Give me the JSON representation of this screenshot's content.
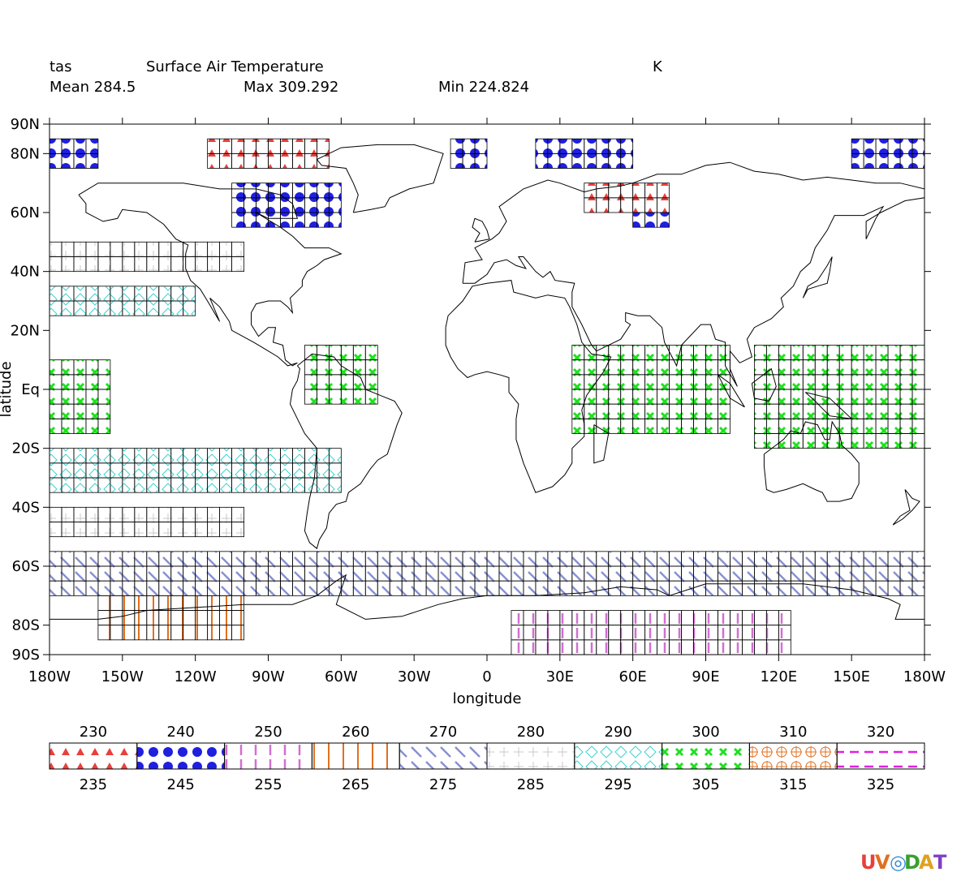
{
  "header": {
    "var_name": "tas",
    "long_name": "Surface Air Temperature",
    "units": "K",
    "mean": "Mean 284.5",
    "max": "Max 309.292",
    "min": "Min 224.824"
  },
  "axes": {
    "xlabel": "longitude",
    "ylabel": "latitude",
    "x_ticks": [
      "180W",
      "150W",
      "120W",
      "90W",
      "60W",
      "30W",
      "0",
      "30E",
      "60E",
      "90E",
      "120E",
      "150E",
      "180W"
    ],
    "x_tick_values": [
      -180,
      -150,
      -120,
      -90,
      -60,
      -30,
      0,
      30,
      60,
      90,
      120,
      150,
      180
    ],
    "y_ticks": [
      "90N",
      "80N",
      "60N",
      "40N",
      "20N",
      "Eq",
      "20S",
      "40S",
      "60S",
      "80S",
      "90S"
    ],
    "y_tick_values": [
      90,
      80,
      60,
      40,
      20,
      0,
      -20,
      -40,
      -60,
      -80,
      -90
    ],
    "xlim": [
      -180,
      180
    ],
    "ylim": [
      -90,
      90
    ]
  },
  "legend": {
    "top_labels": [
      "230",
      "240",
      "250",
      "260",
      "270",
      "280",
      "290",
      "300",
      "310",
      "320"
    ],
    "bottom_labels": [
      "235",
      "245",
      "255",
      "265",
      "275",
      "285",
      "295",
      "305",
      "315",
      "325"
    ],
    "bins": [
      {
        "pattern": "triangles",
        "color": "#e8403c"
      },
      {
        "pattern": "dots",
        "color": "#1f1fe0"
      },
      {
        "pattern": "vlines-dashed",
        "color": "#d070d0"
      },
      {
        "pattern": "vlines",
        "color": "#e07020"
      },
      {
        "pattern": "diagonal",
        "color": "#8890d0"
      },
      {
        "pattern": "plus",
        "color": "#c8c8c8"
      },
      {
        "pattern": "diamonds",
        "color": "#40d0d0"
      },
      {
        "pattern": "crosses",
        "color": "#20e020"
      },
      {
        "pattern": "circles-plus",
        "color": "#e07020"
      },
      {
        "pattern": "hdash",
        "color": "#e020e0"
      }
    ]
  },
  "logo": "UV-CDAT",
  "chart_data": {
    "type": "heatmap",
    "title": "Surface Air Temperature",
    "units": "K",
    "grid_step_degrees": 5,
    "bin_edges": [
      230,
      235,
      240,
      245,
      250,
      255,
      260,
      265,
      270,
      275,
      280,
      285,
      290,
      295,
      300,
      305,
      310,
      315,
      320,
      325
    ],
    "cells_note": "approximate: lon,lat cell centres with bin index",
    "cells": [
      {
        "lat_band": [
          75,
          85
        ],
        "lon_band": [
          -180,
          -160
        ],
        "bin": 1
      },
      {
        "lat_band": [
          75,
          85
        ],
        "lon_band": [
          -115,
          -65
        ],
        "bin": 0
      },
      {
        "lat_band": [
          75,
          85
        ],
        "lon_band": [
          -15,
          0
        ],
        "bin": 1
      },
      {
        "lat_band": [
          75,
          85
        ],
        "lon_band": [
          20,
          60
        ],
        "bin": 1
      },
      {
        "lat_band": [
          75,
          85
        ],
        "lon_band": [
          150,
          180
        ],
        "bin": 1
      },
      {
        "lat_band": [
          55,
          70
        ],
        "lon_band": [
          -105,
          -60
        ],
        "bin": 1
      },
      {
        "lat_band": [
          60,
          70
        ],
        "lon_band": [
          40,
          75
        ],
        "bin": 0
      },
      {
        "lat_band": [
          55,
          60
        ],
        "lon_band": [
          60,
          75
        ],
        "bin": 1
      },
      {
        "lat_band": [
          40,
          50
        ],
        "lon_band": [
          -180,
          -100
        ],
        "bin": 5
      },
      {
        "lat_band": [
          25,
          35
        ],
        "lon_band": [
          -180,
          -120
        ],
        "bin": 6
      },
      {
        "lat_band": [
          -15,
          10
        ],
        "lon_band": [
          -180,
          -155
        ],
        "bin": 7
      },
      {
        "lat_band": [
          -5,
          15
        ],
        "lon_band": [
          -75,
          -45
        ],
        "bin": 7
      },
      {
        "lat_band": [
          -15,
          15
        ],
        "lon_band": [
          35,
          100
        ],
        "bin": 7
      },
      {
        "lat_band": [
          -20,
          15
        ],
        "lon_band": [
          110,
          180
        ],
        "bin": 7
      },
      {
        "lat_band": [
          -35,
          -20
        ],
        "lon_band": [
          -180,
          -60
        ],
        "bin": 6
      },
      {
        "lat_band": [
          -50,
          -40
        ],
        "lon_band": [
          -180,
          -100
        ],
        "bin": 5
      },
      {
        "lat_band": [
          -70,
          -55
        ],
        "lon_band": [
          -180,
          180
        ],
        "bin": 4
      },
      {
        "lat_band": [
          -85,
          -70
        ],
        "lon_band": [
          -160,
          -100
        ],
        "bin": 3
      },
      {
        "lat_band": [
          -90,
          -75
        ],
        "lon_band": [
          10,
          125
        ],
        "bin": 2
      }
    ]
  }
}
